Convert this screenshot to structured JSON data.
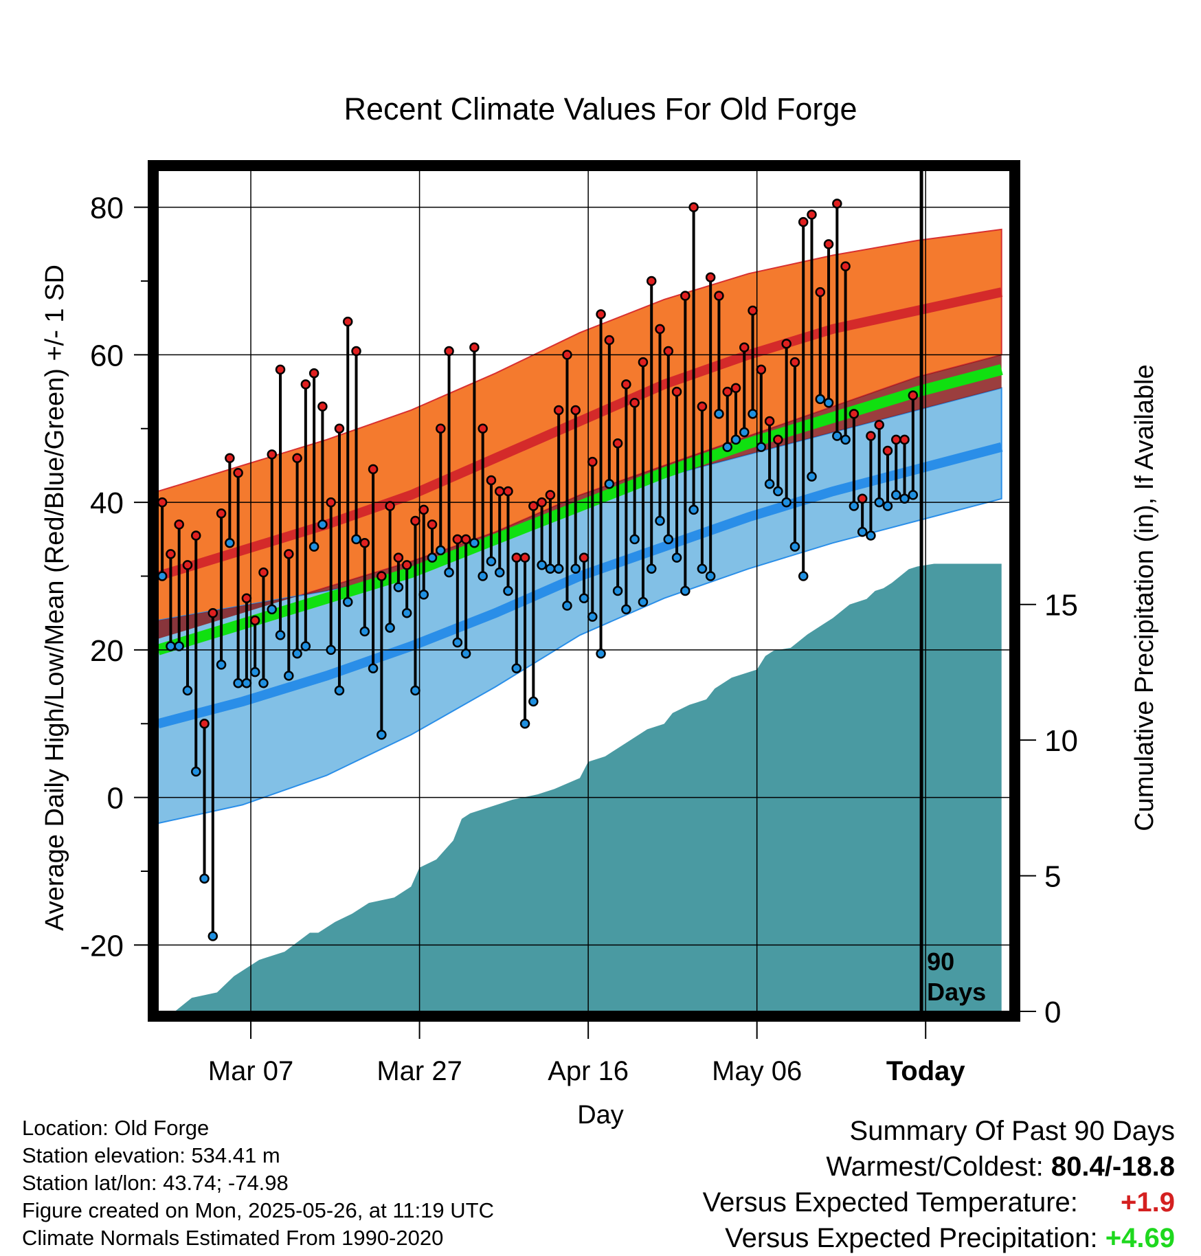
{
  "chart_data": {
    "type": "line",
    "title": "Recent Climate Values For Old Forge",
    "xlabel": "Day",
    "ylabel_left": "Average Daily High/Low/Mean (Red/Blue/Green) +/- 1 SD",
    "ylabel_right": "Cumulative Precipitation (in), If Available",
    "left_axis": {
      "ylim": [
        -29,
        85
      ],
      "ticks": [
        80,
        60,
        40,
        20,
        0,
        -20
      ],
      "tick_labels": [
        "80",
        "60",
        "40",
        "20",
        "0",
        "-20"
      ]
    },
    "right_axis": {
      "ylim": [
        0,
        31
      ],
      "ticks": [
        15,
        10,
        5,
        0
      ],
      "tick_labels": [
        "15",
        "10",
        "5",
        "0"
      ]
    },
    "x_axis": {
      "xlim": [
        0,
        101
      ],
      "tick_positions": [
        11,
        31,
        51,
        71,
        91
      ],
      "tick_labels": [
        "Mar 07",
        "Mar 27",
        "Apr 16",
        "May 06",
        "Today"
      ]
    },
    "grid": true,
    "today_marker": {
      "x": 90.5,
      "label_line1": "90",
      "label_line2": "Days"
    },
    "normals": {
      "x": [
        0,
        10,
        20,
        30,
        40,
        50,
        60,
        70,
        80,
        90,
        100
      ],
      "high_mean": [
        30,
        33.5,
        37,
        41,
        46,
        51,
        56,
        60,
        63.5,
        66,
        68.5
      ],
      "high_upper": [
        41.5,
        45,
        48.5,
        52.5,
        57.5,
        63,
        67.5,
        71,
        73.5,
        75.5,
        77
      ],
      "high_lower": [
        21.5,
        25,
        28.5,
        32,
        36,
        41,
        45,
        49,
        53,
        57,
        60
      ],
      "mean_line": [
        20,
        23.5,
        27,
        30.5,
        35,
        39.5,
        44,
        48,
        51.5,
        55,
        58
      ],
      "low_mean": [
        10,
        13,
        16.5,
        20.5,
        25,
        30,
        34,
        38,
        41.5,
        44.5,
        47.5
      ],
      "low_upper": [
        24,
        26,
        28,
        30.5,
        35,
        40,
        43.5,
        46.5,
        49.5,
        52.5,
        55.5
      ],
      "low_lower": [
        -3.5,
        -1,
        3,
        8.5,
        15,
        22,
        27,
        31,
        34.5,
        37.5,
        40.5
      ]
    },
    "series": [
      {
        "name": "High",
        "color": "#e02020",
        "values": [
          40,
          33,
          37,
          31.5,
          35.5,
          10,
          25,
          38.5,
          46,
          44,
          27,
          24,
          30.5,
          46.5,
          58,
          33,
          46,
          56,
          57.5,
          53,
          40,
          50,
          64.5,
          60.5,
          34.5,
          44.5,
          30,
          39.5,
          32.5,
          31.5,
          37.5,
          39,
          37,
          50,
          60.5,
          35,
          35,
          61,
          50,
          43,
          41.5,
          41.5,
          32.5,
          32.5,
          39.5,
          40,
          41,
          52.5,
          60,
          52.5,
          32.5,
          45.5,
          65.5,
          62,
          48,
          56,
          53.5,
          59,
          70,
          63.5,
          60.5,
          55,
          68,
          80,
          53,
          70.5,
          68,
          55,
          55.5,
          61,
          66,
          58,
          51,
          48.5,
          61.5,
          59,
          78,
          79,
          68.5,
          75,
          80.5,
          72,
          52,
          40.5,
          49,
          50.5,
          47,
          48.5,
          48.5,
          54.5
        ]
      },
      {
        "name": "Low",
        "color": "#2090e0",
        "values": [
          30,
          20.5,
          20.5,
          14.5,
          3.5,
          -11,
          -18.8,
          18,
          34.5,
          15.5,
          15.5,
          17,
          15.5,
          25.5,
          22,
          16.5,
          19.5,
          20.5,
          34,
          37,
          20,
          14.5,
          26.5,
          35,
          22.5,
          17.5,
          8.5,
          23,
          28.5,
          25,
          14.5,
          27.5,
          32.5,
          33.5,
          30.5,
          21,
          19.5,
          34.5,
          30,
          32,
          30.5,
          28,
          17.5,
          10,
          13,
          31.5,
          31,
          31,
          26,
          31,
          27,
          24.5,
          19.5,
          42.5,
          28,
          25.5,
          35,
          26.5,
          31,
          37.5,
          35,
          32.5,
          28,
          39,
          31,
          30,
          52,
          47.5,
          48.5,
          49.5,
          52,
          47.5,
          42.5,
          41.5,
          40,
          34,
          30,
          43.5,
          54,
          53.5,
          49,
          48.5,
          39.5,
          36,
          35.5,
          40,
          39.5,
          41,
          40.5,
          41
        ]
      }
    ],
    "cumulative_precip": {
      "x": [
        0,
        2,
        4,
        7,
        9,
        12,
        15,
        18,
        19,
        21,
        23,
        25,
        28,
        30,
        31,
        33,
        35,
        36,
        37,
        39,
        42,
        45,
        47,
        50,
        51,
        53,
        55,
        58,
        60,
        61,
        63,
        65,
        66,
        68,
        71,
        72,
        73,
        75,
        77,
        79,
        80,
        82,
        84,
        85,
        86,
        87,
        89,
        90,
        92,
        94,
        96,
        98,
        100
      ],
      "values": [
        0,
        0,
        0.5,
        0.7,
        1.3,
        1.9,
        2.2,
        2.9,
        2.9,
        3.3,
        3.6,
        4.0,
        4.2,
        4.6,
        5.3,
        5.6,
        6.3,
        7.1,
        7.3,
        7.5,
        7.8,
        8.0,
        8.2,
        8.6,
        9.2,
        9.4,
        9.8,
        10.4,
        10.6,
        11.0,
        11.3,
        11.5,
        11.9,
        12.3,
        12.6,
        13.1,
        13.3,
        13.4,
        13.9,
        14.3,
        14.5,
        15.0,
        15.2,
        15.5,
        15.6,
        15.8,
        16.3,
        16.4,
        16.5,
        16.5,
        16.5,
        16.5,
        16.5
      ]
    }
  },
  "legend_colors": {
    "high_band": "#f47a2e",
    "high_line": "#d42a2a",
    "mean_band": "#10e010",
    "low_band": "#82c0e6",
    "low_line": "#2a8ee8",
    "precip": "#4a9aa2"
  },
  "footer_left": {
    "location": "Location: Old Forge",
    "elevation": "Station elevation: 534.41 m",
    "latlon": "Station lat/lon: 43.74; -74.98",
    "created": "Figure created on Mon, 2025-05-26, at 11:19 UTC",
    "normals": "Climate Normals Estimated From 1990-2020"
  },
  "summary": {
    "heading": "Summary Of Past 90 Days",
    "warmest_label": "Warmest/Coldest:",
    "warmest_value": "80.4/-18.8",
    "temp_label": "Versus Expected Temperature:",
    "temp_value": "+1.9",
    "temp_color": "#d42020",
    "precip_label": "Versus Expected Precipitation:",
    "precip_value": "+4.69",
    "precip_color": "#1ed81e"
  }
}
